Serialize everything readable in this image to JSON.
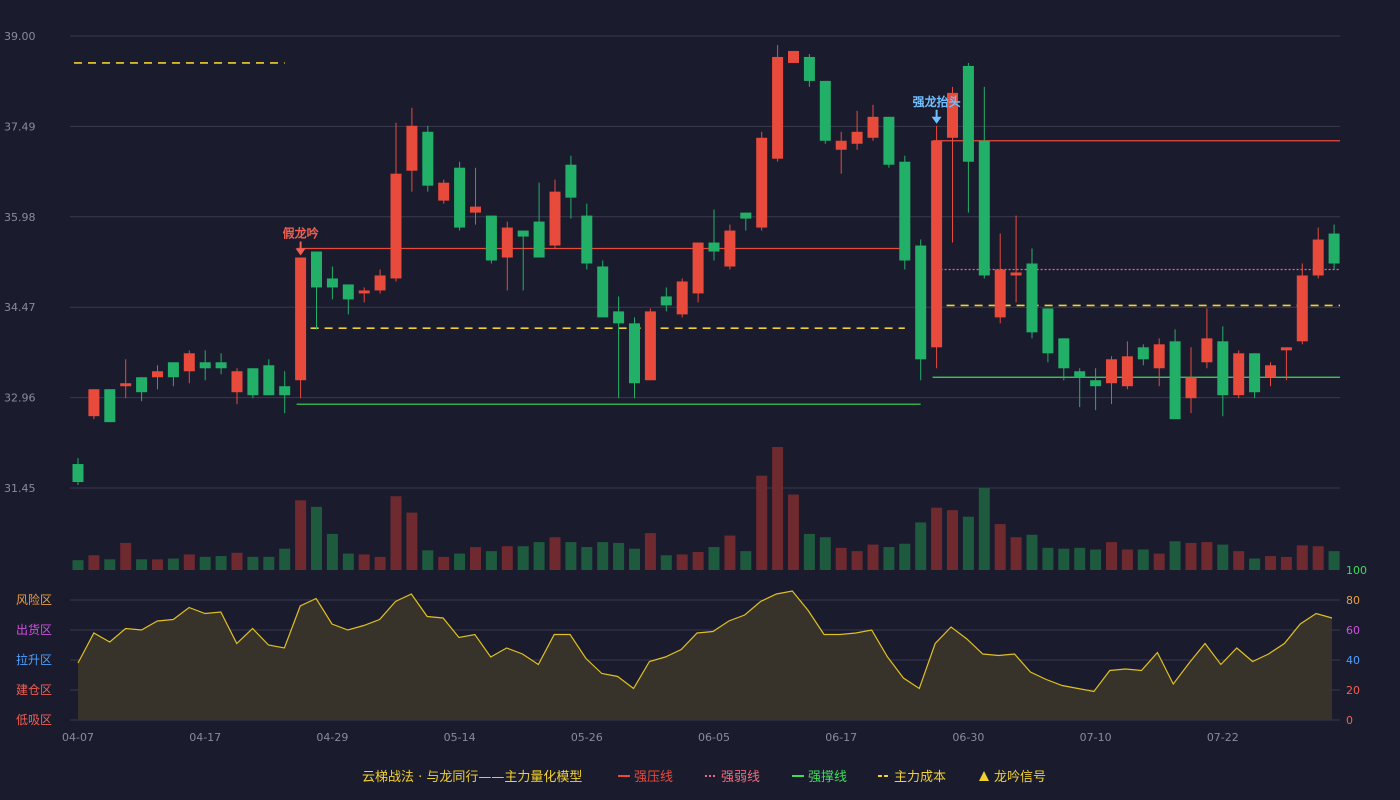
{
  "chart_data": {
    "type": "candlestick",
    "title": "云梯战法 · 与龙同行——主力量化模型",
    "colors": {
      "background": "#1b1b2e",
      "up": "#e84a3c",
      "down": "#22b068",
      "vol_up": "#6e2a2e",
      "vol_down": "#1e5a3e",
      "strong_press": "#e84a3c",
      "strong_weak": "#f06a7a",
      "support": "#3ddc58",
      "cost": "#f0d030",
      "indicator_line": "#e0c020",
      "indicator_fill": "#37322a",
      "grid": "#3a3a4e",
      "text": "#8a8a9a",
      "dragon_label": "#6ec0ff",
      "fake_label": "#f06050"
    },
    "price_axis": {
      "ticks": [
        "39.00",
        "37.49",
        "35.98",
        "34.47",
        "32.96",
        "31.45"
      ],
      "range": [
        31.45,
        39.0
      ]
    },
    "indicator_axis": {
      "ticks_right": [
        "100",
        "80",
        "60",
        "40",
        "20",
        "0"
      ],
      "zones_left": [
        "风险区",
        "出货区",
        "拉升区",
        "建仓区",
        "低吸区"
      ],
      "zone_colors": [
        "#e8a040",
        "#d050e0",
        "#4aa0ff",
        "#f06050",
        "#f06050"
      ],
      "range": [
        0,
        100
      ]
    },
    "x_labels": [
      {
        "i": 0,
        "label": "04-07"
      },
      {
        "i": 8,
        "label": "04-17"
      },
      {
        "i": 16,
        "label": "04-29"
      },
      {
        "i": 24,
        "label": "05-14"
      },
      {
        "i": 32,
        "label": "05-26"
      },
      {
        "i": 40,
        "label": "06-05"
      },
      {
        "i": 48,
        "label": "06-17"
      },
      {
        "i": 56,
        "label": "06-30"
      },
      {
        "i": 64,
        "label": "07-10"
      },
      {
        "i": 72,
        "label": "07-22"
      }
    ],
    "candles": [
      [
        31.85,
        31.55,
        31.95,
        31.5
      ],
      [
        32.65,
        33.1,
        33.1,
        32.6
      ],
      [
        33.1,
        32.55,
        33.1,
        32.55
      ],
      [
        33.15,
        33.2,
        33.6,
        32.95
      ],
      [
        33.3,
        33.05,
        33.3,
        32.9
      ],
      [
        33.3,
        33.4,
        33.5,
        33.1
      ],
      [
        33.55,
        33.3,
        33.55,
        33.15
      ],
      [
        33.4,
        33.7,
        33.75,
        33.2
      ],
      [
        33.55,
        33.45,
        33.75,
        33.25
      ],
      [
        33.55,
        33.45,
        33.7,
        33.35
      ],
      [
        33.05,
        33.4,
        33.45,
        32.85
      ],
      [
        33.45,
        33.0,
        33.45,
        32.95
      ],
      [
        33.5,
        33.0,
        33.6,
        33.0
      ],
      [
        33.15,
        33.0,
        33.4,
        32.7
      ],
      [
        33.25,
        35.3,
        35.3,
        32.95
      ],
      [
        35.4,
        34.8,
        35.4,
        34.1
      ],
      [
        34.95,
        34.8,
        35.15,
        34.6
      ],
      [
        34.85,
        34.6,
        34.85,
        34.35
      ],
      [
        34.7,
        34.75,
        34.8,
        34.55
      ],
      [
        34.75,
        35.0,
        35.1,
        34.7
      ],
      [
        34.95,
        36.7,
        37.55,
        34.9
      ],
      [
        36.75,
        37.5,
        37.8,
        36.4
      ],
      [
        37.4,
        36.5,
        37.5,
        36.4
      ],
      [
        36.25,
        36.55,
        36.6,
        36.2
      ],
      [
        36.8,
        35.8,
        36.9,
        35.75
      ],
      [
        36.05,
        36.15,
        36.8,
        35.85
      ],
      [
        36.0,
        35.25,
        36.0,
        35.2
      ],
      [
        35.3,
        35.8,
        35.9,
        34.75
      ],
      [
        35.75,
        35.65,
        35.75,
        34.75
      ],
      [
        35.9,
        35.3,
        36.55,
        35.3
      ],
      [
        35.5,
        36.4,
        36.6,
        35.45
      ],
      [
        36.85,
        36.3,
        37.0,
        35.95
      ],
      [
        36.0,
        35.2,
        36.2,
        35.1
      ],
      [
        35.15,
        34.3,
        35.25,
        34.3
      ],
      [
        34.4,
        34.2,
        34.65,
        32.95
      ],
      [
        34.2,
        33.2,
        34.3,
        32.95
      ],
      [
        33.25,
        34.4,
        34.45,
        33.25
      ],
      [
        34.65,
        34.5,
        34.8,
        34.4
      ],
      [
        34.35,
        34.9,
        34.95,
        34.3
      ],
      [
        34.7,
        35.55,
        35.55,
        34.55
      ],
      [
        35.55,
        35.4,
        36.1,
        35.25
      ],
      [
        35.15,
        35.75,
        35.85,
        35.1
      ],
      [
        36.05,
        35.95,
        36.05,
        35.75
      ],
      [
        35.8,
        37.3,
        37.4,
        35.75
      ],
      [
        36.95,
        38.65,
        38.85,
        36.9
      ],
      [
        38.55,
        38.75,
        38.75,
        38.55
      ],
      [
        38.65,
        38.25,
        38.7,
        38.15
      ],
      [
        38.25,
        37.25,
        38.25,
        37.2
      ],
      [
        37.1,
        37.25,
        37.4,
        36.7
      ],
      [
        37.2,
        37.4,
        37.75,
        37.1
      ],
      [
        37.3,
        37.65,
        37.85,
        37.25
      ],
      [
        37.65,
        36.85,
        37.65,
        36.8
      ],
      [
        36.9,
        35.25,
        37.0,
        35.1
      ],
      [
        35.5,
        33.6,
        35.6,
        33.25
      ],
      [
        33.8,
        37.25,
        37.5,
        33.45
      ],
      [
        37.3,
        38.05,
        38.15,
        35.55
      ],
      [
        38.5,
        36.9,
        38.55,
        36.05
      ],
      [
        37.25,
        35.0,
        38.15,
        34.95
      ],
      [
        34.3,
        35.1,
        35.7,
        34.2
      ],
      [
        35.0,
        35.05,
        36.0,
        34.55
      ],
      [
        35.2,
        34.05,
        35.45,
        33.95
      ],
      [
        34.45,
        33.7,
        34.45,
        33.55
      ],
      [
        33.95,
        33.45,
        33.95,
        33.25
      ],
      [
        33.4,
        33.3,
        33.45,
        32.8
      ],
      [
        33.25,
        33.15,
        33.45,
        32.75
      ],
      [
        33.2,
        33.6,
        33.65,
        32.85
      ],
      [
        33.15,
        33.65,
        33.9,
        33.1
      ],
      [
        33.8,
        33.6,
        33.85,
        33.5
      ],
      [
        33.45,
        33.85,
        33.95,
        33.15
      ],
      [
        33.9,
        32.6,
        34.1,
        32.6
      ],
      [
        32.95,
        33.3,
        33.8,
        32.7
      ],
      [
        33.55,
        33.95,
        34.45,
        33.45
      ],
      [
        33.9,
        33.0,
        34.15,
        32.65
      ],
      [
        33.0,
        33.7,
        33.75,
        32.95
      ],
      [
        33.7,
        33.05,
        33.7,
        32.95
      ],
      [
        33.3,
        33.5,
        33.55,
        33.15
      ],
      [
        33.75,
        33.8,
        33.8,
        33.25
      ],
      [
        33.9,
        35.0,
        35.2,
        33.85
      ],
      [
        35.0,
        35.6,
        35.8,
        34.95
      ],
      [
        35.7,
        35.2,
        35.85,
        35.1
      ]
    ],
    "volume": [
      0.12,
      0.18,
      0.13,
      0.33,
      0.13,
      0.13,
      0.14,
      0.19,
      0.16,
      0.17,
      0.21,
      0.16,
      0.16,
      0.26,
      0.85,
      0.77,
      0.44,
      0.2,
      0.19,
      0.16,
      0.9,
      0.7,
      0.24,
      0.16,
      0.2,
      0.28,
      0.23,
      0.29,
      0.29,
      0.34,
      0.4,
      0.34,
      0.28,
      0.34,
      0.33,
      0.26,
      0.45,
      0.18,
      0.19,
      0.22,
      0.28,
      0.42,
      0.23,
      1.15,
      1.5,
      0.92,
      0.44,
      0.4,
      0.27,
      0.23,
      0.31,
      0.28,
      0.32,
      0.58,
      0.76,
      0.73,
      0.65,
      1.0,
      0.56,
      0.4,
      0.43,
      0.27,
      0.26,
      0.27,
      0.25,
      0.34,
      0.25,
      0.25,
      0.2,
      0.35,
      0.33,
      0.34,
      0.31,
      0.23,
      0.14,
      0.17,
      0.16,
      0.3,
      0.29,
      0.23
    ],
    "indicator": [
      38,
      58,
      52,
      61,
      60,
      66,
      67,
      75,
      71,
      72,
      51,
      61,
      50,
      48,
      76,
      81,
      64,
      60,
      63,
      67,
      79,
      84,
      69,
      68,
      55,
      57,
      42,
      48,
      44,
      37,
      57,
      57,
      41,
      31,
      29,
      21,
      39,
      42,
      47,
      58,
      59,
      66,
      70,
      79,
      84,
      86,
      73,
      57,
      57,
      58,
      60,
      42,
      28,
      21,
      51,
      62,
      54,
      44,
      43,
      44,
      32,
      27,
      23,
      21,
      19,
      33,
      34,
      33,
      45,
      24,
      38,
      51,
      37,
      48,
      39,
      44,
      51,
      64,
      71,
      68
    ],
    "lines": {
      "strong_press": [
        {
          "i0": 14,
          "i1": 52,
          "v": 35.45
        },
        {
          "i0": 54,
          "i1": 80,
          "v": 37.25
        }
      ],
      "strong_weak": [
        {
          "i0": 54,
          "i1": 80,
          "v": 35.1
        }
      ],
      "support": [
        {
          "i0": 14,
          "i1": 53,
          "v": 32.85
        },
        {
          "i0": 54,
          "i1": 80,
          "v": 33.3
        }
      ],
      "cost": [
        {
          "i0": 0,
          "i1": 13,
          "v": 38.55
        },
        {
          "i0": 14,
          "i1": 52,
          "v": 34.12
        },
        {
          "i0": 54,
          "i1": 80,
          "v": 34.5
        }
      ]
    },
    "signals": [
      {
        "i": 14,
        "label": "假龙吟",
        "color": "#f06050"
      },
      {
        "i": 54,
        "label": "强龙抬头",
        "color": "#6ec0ff"
      }
    ],
    "legend": [
      {
        "label": "强压线",
        "style": "solid",
        "color": "#e84a3c"
      },
      {
        "label": "强弱线",
        "style": "dotted",
        "color": "#f06a7a"
      },
      {
        "label": "强撑线",
        "style": "solid",
        "color": "#3ddc58"
      },
      {
        "label": "主力成本",
        "style": "dashed",
        "color": "#f0d030"
      },
      {
        "label": "龙吟信号",
        "style": "triangle",
        "color": "#f0d030"
      }
    ]
  }
}
